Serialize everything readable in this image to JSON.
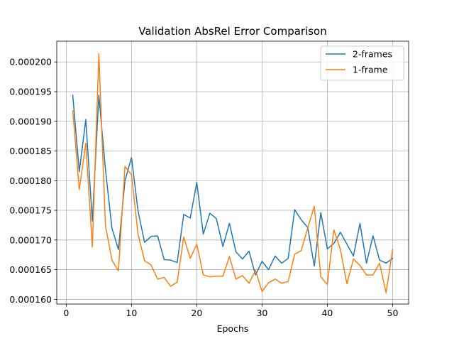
{
  "chart_data": {
    "type": "line",
    "title": "Validation AbsRel Error Comparison",
    "xlabel": "Epochs",
    "ylabel": "",
    "xlim": [
      -1.45,
      52.45
    ],
    "ylim": [
      0.0001592,
      0.0002035
    ],
    "xticks": [
      0,
      10,
      20,
      30,
      40,
      50
    ],
    "yticks": [
      0.00016,
      0.000165,
      0.00017,
      0.000175,
      0.00018,
      0.000185,
      0.00019,
      0.000195,
      0.0002
    ],
    "ytick_labels": [
      "0.000160",
      "0.000165",
      "0.000170",
      "0.000175",
      "0.000180",
      "0.000185",
      "0.000190",
      "0.000195",
      "0.000200"
    ],
    "grid": true,
    "legend_position": "top-right",
    "x": [
      1,
      2,
      3,
      4,
      5,
      6,
      7,
      8,
      9,
      10,
      11,
      12,
      13,
      14,
      15,
      16,
      17,
      18,
      19,
      20,
      21,
      22,
      23,
      24,
      25,
      26,
      27,
      28,
      29,
      30,
      31,
      32,
      33,
      34,
      35,
      36,
      37,
      38,
      39,
      40,
      41,
      42,
      43,
      44,
      45,
      46,
      47,
      48,
      49,
      50
    ],
    "series": [
      {
        "name": "2-frames",
        "color": "#1f77b4",
        "values": [
          0.0001944,
          0.0001815,
          0.0001903,
          0.0001732,
          0.0001944,
          0.000182,
          0.000172,
          0.0001684,
          0.00018,
          0.0001839,
          0.0001749,
          0.0001696,
          0.0001706,
          0.0001707,
          0.0001667,
          0.0001666,
          0.0001662,
          0.0001743,
          0.0001737,
          0.0001797,
          0.000171,
          0.0001745,
          0.0001736,
          0.0001689,
          0.0001728,
          0.000168,
          0.0001668,
          0.0001681,
          0.0001641,
          0.0001664,
          0.000165,
          0.0001673,
          0.0001661,
          0.0001669,
          0.0001751,
          0.0001734,
          0.0001721,
          0.0001656,
          0.0001746,
          0.0001685,
          0.0001694,
          0.0001713,
          0.0001693,
          0.0001673,
          0.0001728,
          0.0001661,
          0.0001707,
          0.0001666,
          0.0001661,
          0.0001669
        ]
      },
      {
        "name": "1-frame",
        "color": "#ff7f0e",
        "values": [
          0.0001918,
          0.0001785,
          0.0001863,
          0.0001688,
          0.0002014,
          0.0001725,
          0.0001666,
          0.0001648,
          0.0001824,
          0.000181,
          0.000171,
          0.0001665,
          0.0001658,
          0.0001634,
          0.0001637,
          0.0001622,
          0.0001629,
          0.0001705,
          0.0001669,
          0.0001693,
          0.0001641,
          0.0001638,
          0.0001639,
          0.0001639,
          0.0001672,
          0.0001634,
          0.000164,
          0.0001627,
          0.0001649,
          0.0001613,
          0.0001628,
          0.0001634,
          0.0001627,
          0.000163,
          0.0001676,
          0.0001682,
          0.000172,
          0.0001757,
          0.0001638,
          0.0001625,
          0.0001717,
          0.0001684,
          0.0001626,
          0.0001668,
          0.0001657,
          0.0001641,
          0.0001641,
          0.0001661,
          0.0001611,
          0.0001684
        ]
      }
    ]
  }
}
